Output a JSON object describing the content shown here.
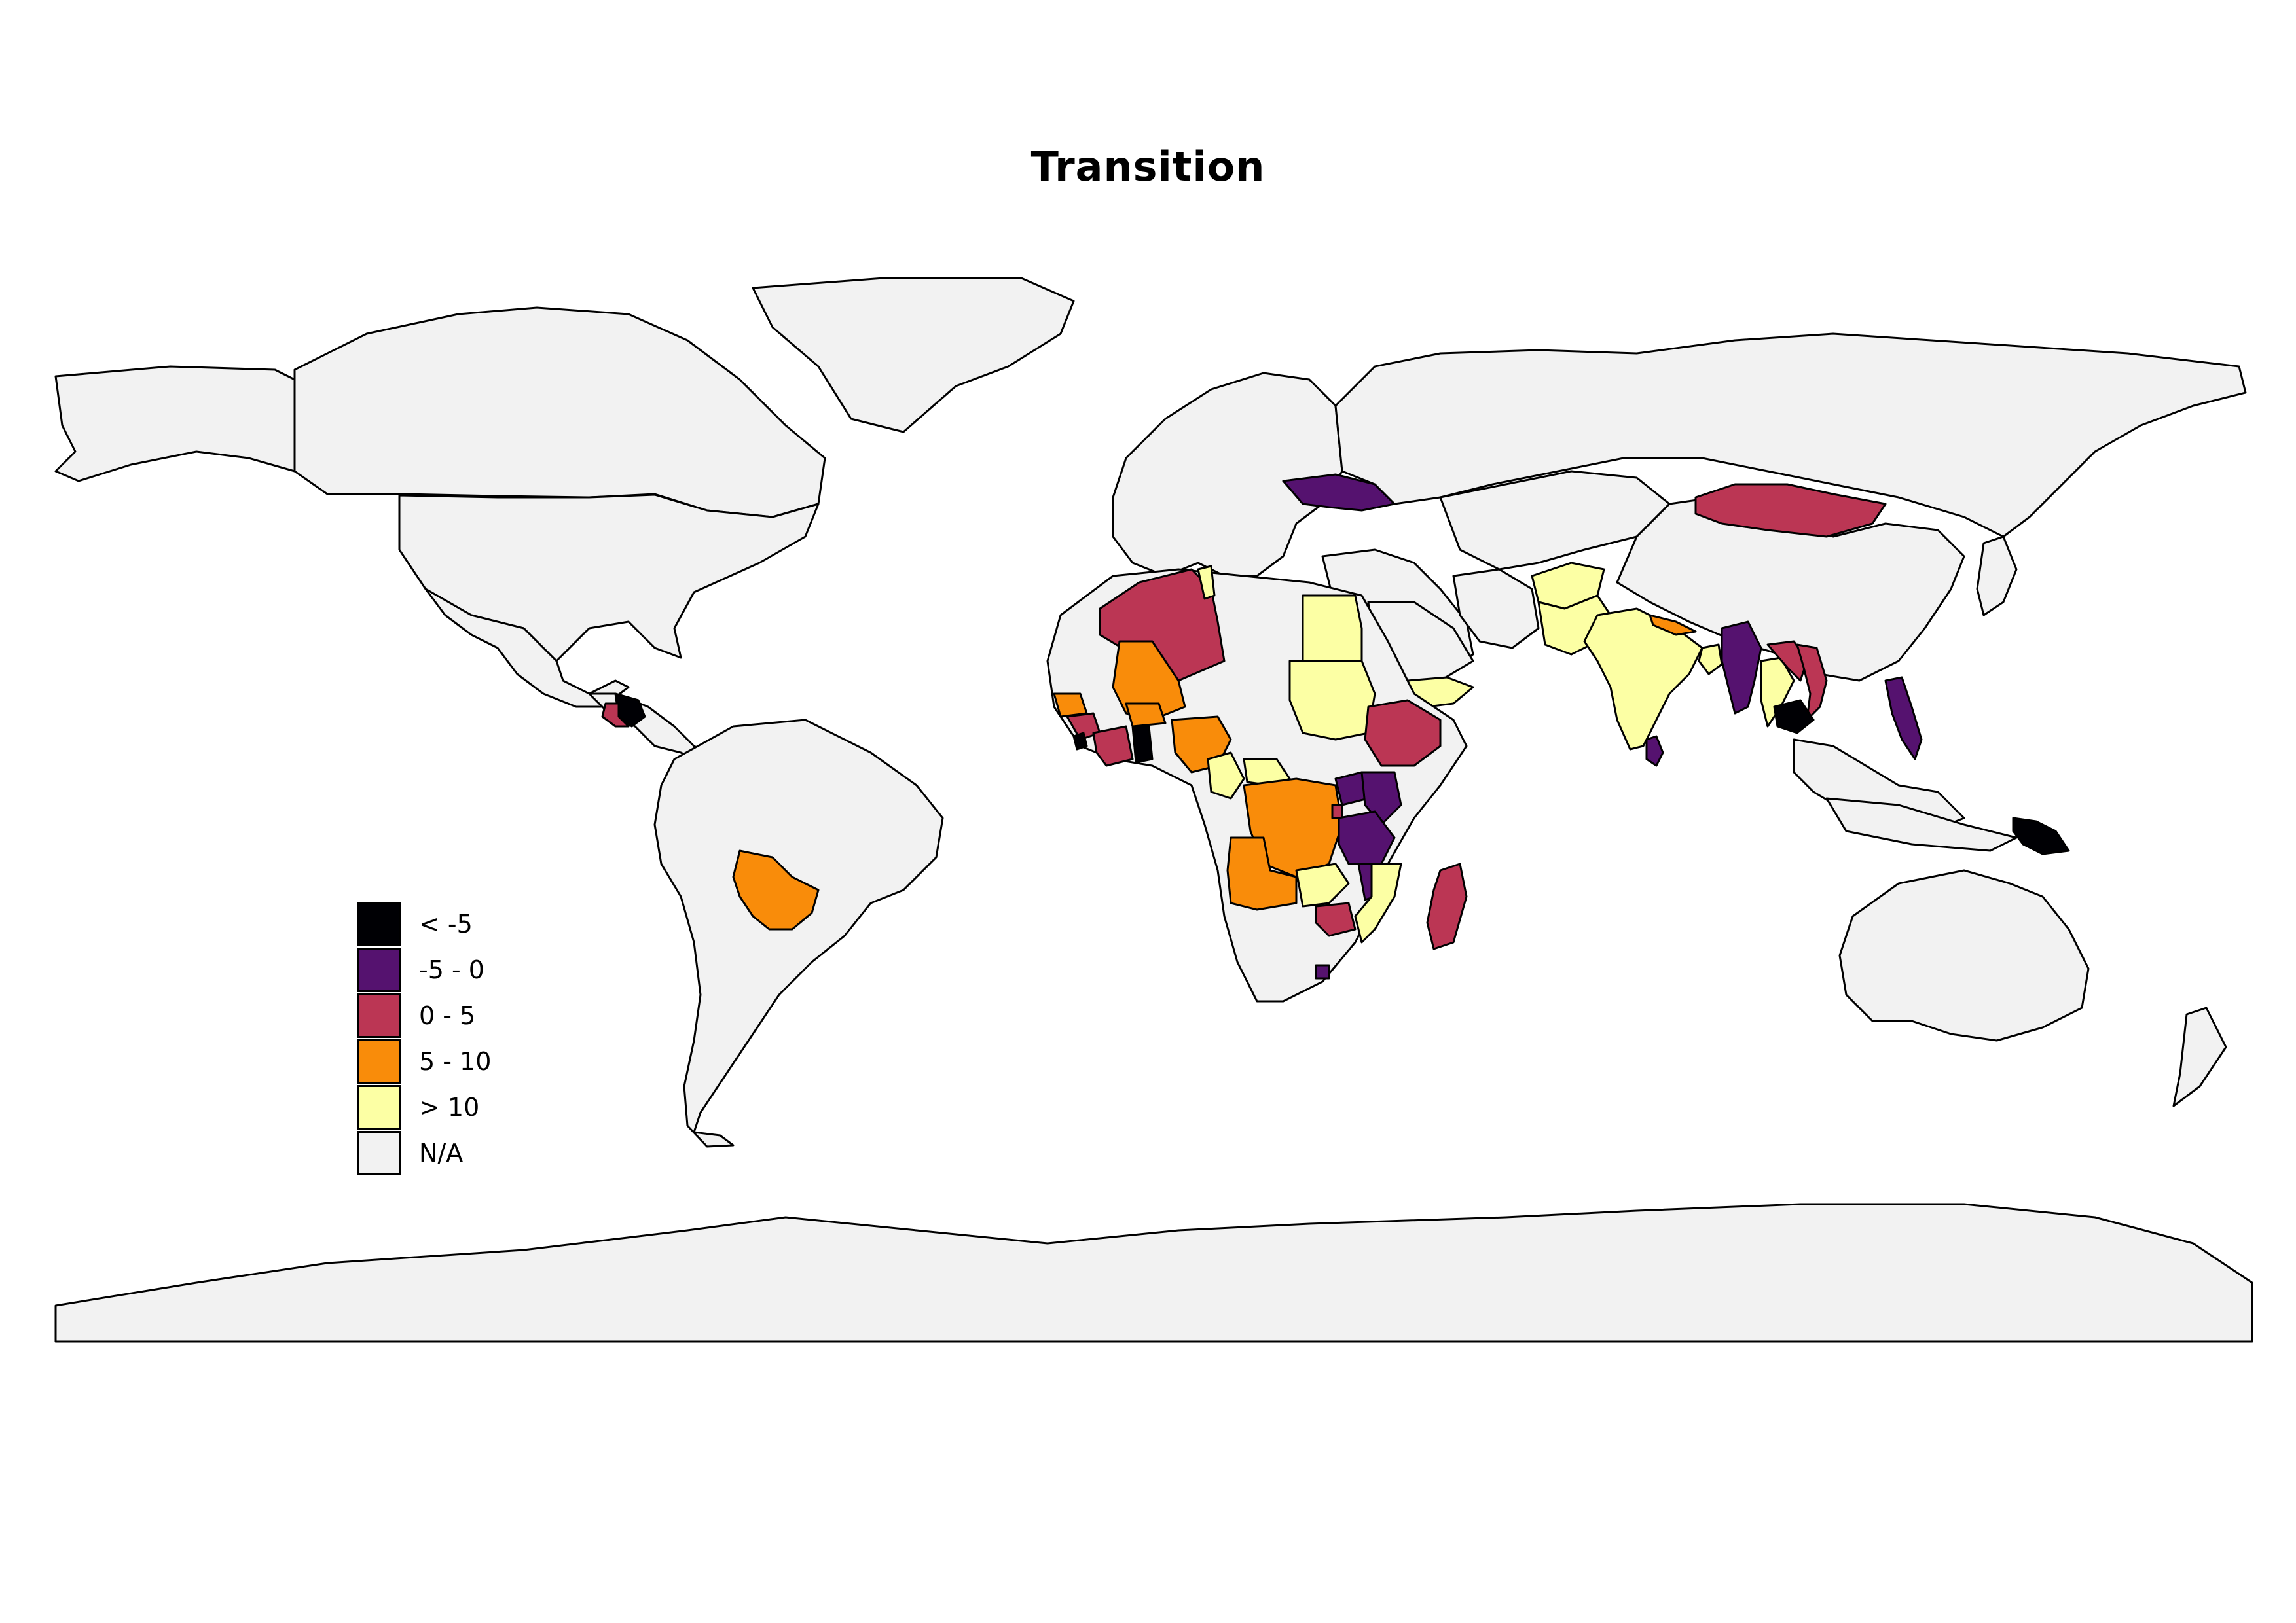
{
  "title": "Transition",
  "colors": {
    "lt_-5": "#000004",
    "-5_0": "#55126f",
    "0_5": "#bb3654",
    "5_10": "#f98c0a",
    "gt_10": "#fcffa4",
    "na": "#f2f2f2",
    "border": "#000000"
  },
  "legend": {
    "items": [
      {
        "label": "< -5",
        "class": "lt_-5",
        "color": "#000004"
      },
      {
        "label": "-5 - 0",
        "class": "-5_0",
        "color": "#55126f"
      },
      {
        "label": "0 - 5",
        "class": "0_5",
        "color": "#bb3654"
      },
      {
        "label": "5 - 10",
        "class": "5_10",
        "color": "#f98c0a"
      },
      {
        "label": "> 10",
        "class": "gt_10",
        "color": "#fcffa4"
      },
      {
        "label": "N/A",
        "class": "na",
        "color": "#f2f2f2"
      }
    ]
  },
  "regions": {
    "canada": "na",
    "usa": "na",
    "alaska": "na",
    "greenland": "na",
    "mexico": "na",
    "central_america": "na",
    "nicaragua": "0_5",
    "honduras": "lt_-5",
    "south_america": "na",
    "bolivia": "5_10",
    "europe": "na",
    "ukraine": "-5_0",
    "russia": "na",
    "mongolia": "0_5",
    "china": "na",
    "india": "gt_10",
    "pakistan": "gt_10",
    "afghanistan": "gt_10",
    "nepal": "5_10",
    "bangladesh": "gt_10",
    "myanmar": "-5_0",
    "thailand": "gt_10",
    "cambodia": "lt_-5",
    "vietnam": "0_5",
    "laos": "0_5",
    "philippines": "-5_0",
    "sri_lanka": "-5_0",
    "papua_new_guinea": "lt_-5",
    "australia": "na",
    "algeria": "0_5",
    "tunisia": "gt_10",
    "mali": "5_10",
    "nigeria": "5_10",
    "ghana": "lt_-5",
    "cote_divoire": "0_5",
    "sierra_leone": "lt_-5",
    "senegal": "5_10",
    "guinea": "0_5",
    "burkina_faso": "5_10",
    "egypt": "gt_10",
    "sudan": "gt_10",
    "ethiopia": "0_5",
    "yemen": "gt_10",
    "drc": "5_10",
    "angola": "5_10",
    "kenya": "-5_0",
    "tanzania": "-5_0",
    "uganda": "-5_0",
    "rwanda": "0_5",
    "zambia": "gt_10",
    "malawi": "-5_0",
    "mozambique": "gt_10",
    "zimbabwe": "0_5",
    "madagascar": "0_5",
    "lesotho": "-5_0",
    "cameroon": "gt_10",
    "central_african_rep": "gt_10",
    "rest_of_africa": "na",
    "middle_east": "na",
    "central_asia": "na",
    "southeast_asia_other": "na",
    "indonesia": "na",
    "new_zealand": "na",
    "japan": "na",
    "antarctica": "na",
    "saudi_arabia": "na",
    "iran": "na"
  }
}
